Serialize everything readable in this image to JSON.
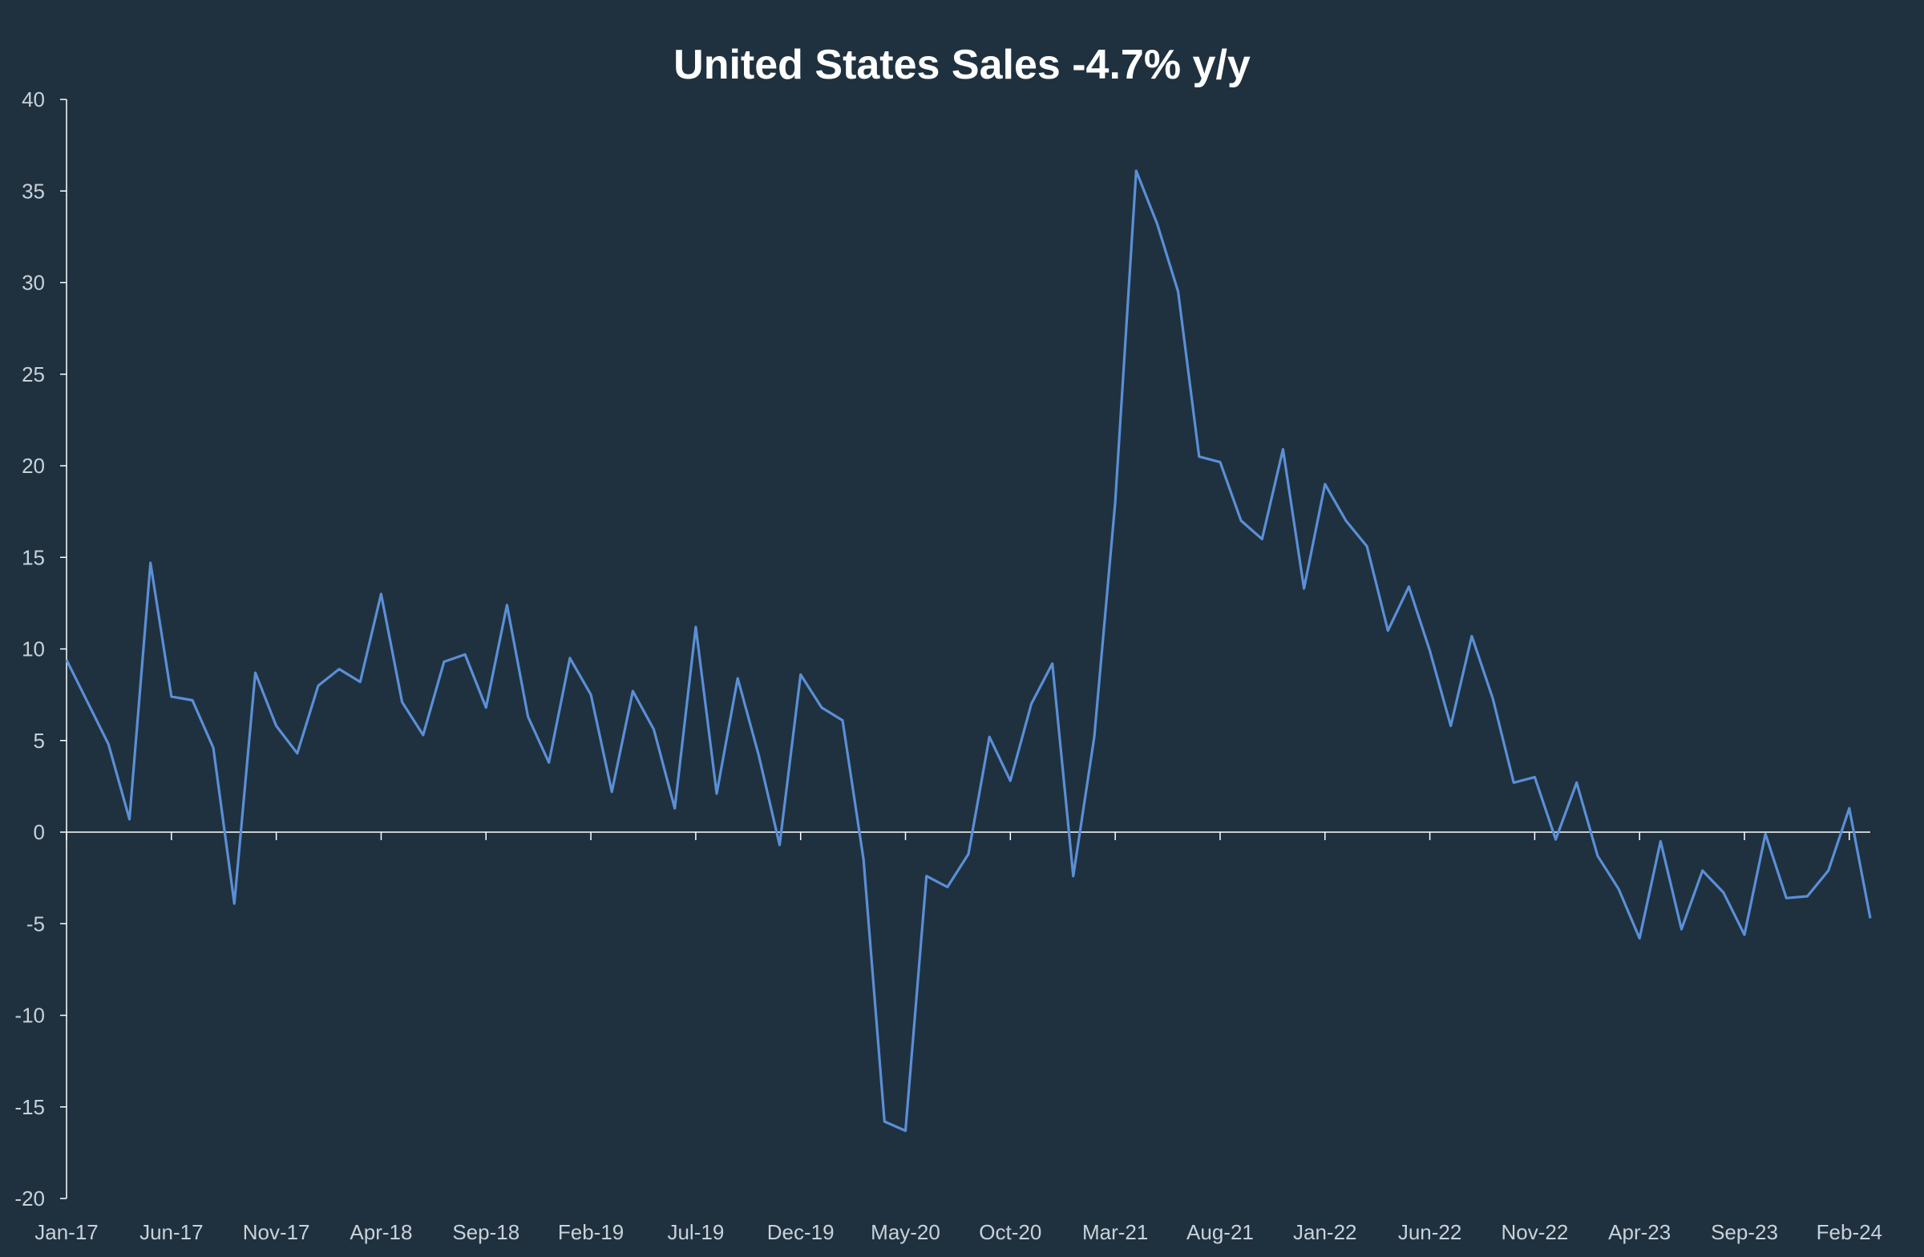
{
  "chart_data": {
    "type": "line",
    "title": "United States Sales -4.7% y/y",
    "xlabel": "",
    "ylabel": "",
    "ylim": [
      -20,
      40
    ],
    "yticks": [
      40,
      35,
      30,
      25,
      20,
      15,
      10,
      5,
      0,
      -5,
      -10,
      -15,
      -20
    ],
    "xtick_labels": [
      "Jan-17",
      "Jun-17",
      "Nov-17",
      "Apr-18",
      "Sep-18",
      "Feb-19",
      "Jul-19",
      "Dec-19",
      "May-20",
      "Oct-20",
      "Mar-21",
      "Aug-21",
      "Jan-22",
      "Jun-22",
      "Nov-22",
      "Apr-23",
      "Sep-23",
      "Feb-24"
    ],
    "x_start": "Jan-17",
    "x_end": "Mar-24",
    "grid": false,
    "legend": "none",
    "colors": {
      "background": "#1f313f",
      "line": "#5b8fd6",
      "axis": "#ffffff",
      "text": "#c9d1d9"
    },
    "series": [
      {
        "values": [
          9.4,
          7.1,
          4.8,
          0.7,
          14.7,
          7.4,
          7.2,
          4.6,
          -3.9,
          8.7,
          5.8,
          4.3,
          8.0,
          8.9,
          8.2,
          13.0,
          7.1,
          5.3,
          9.3,
          9.7,
          6.8,
          12.4,
          6.3,
          3.8,
          9.5,
          7.5,
          2.2,
          7.7,
          5.6,
          1.3,
          11.2,
          2.1,
          8.4,
          4.2,
          -0.7,
          8.6,
          6.8,
          6.1,
          -1.5,
          -15.8,
          -16.3,
          -2.4,
          -3.0,
          -1.2,
          5.2,
          2.8,
          7.0,
          9.2,
          -2.4,
          5.2,
          18.0,
          36.1,
          33.2,
          29.5,
          20.5,
          20.2,
          17.0,
          16.0,
          20.9,
          13.3,
          19.0,
          17.0,
          15.6,
          11.0,
          13.4,
          9.9,
          5.8,
          10.7,
          7.3,
          2.7,
          3.0,
          -0.4,
          2.7,
          -1.3,
          -3.1,
          -5.8,
          -0.5,
          -5.3,
          -2.1,
          -3.3,
          -5.6,
          -0.1,
          -3.6,
          -3.5,
          -2.1,
          1.3,
          -4.7
        ]
      }
    ]
  }
}
